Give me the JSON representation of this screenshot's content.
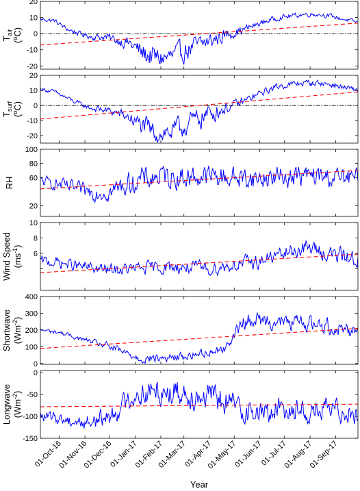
{
  "x_axis": {
    "label": "Year",
    "tick_labels": [
      "01-Oct-16",
      "01-Nov-16",
      "01-Dec-16",
      "01-Jan-17",
      "01-Feb-17",
      "01-Mar-17",
      "01-Apr-17",
      "01-May-17",
      "01-Jun-17",
      "01-Jul-17",
      "01-Aug-17",
      "01-Sep-17"
    ],
    "range": [
      "2016-09-08",
      "2017-09-28"
    ]
  },
  "colors": {
    "series": "#0000ff",
    "trend": "#ff0000",
    "zero_line": "#000000"
  },
  "chart_data": [
    {
      "type": "line",
      "ylabel_main": "T",
      "ylabel_sub": "air",
      "ylabel_unit_pre": "(",
      "ylabel_unit_sup": "o",
      "ylabel_unit_post": "C)",
      "ylim": [
        -22,
        20
      ],
      "yticks": [
        -20,
        -10,
        0,
        10,
        20
      ],
      "zero_line": true,
      "trend": {
        "start": -7.0,
        "end": 6.5
      },
      "anchors": [
        [
          "2016-09-08",
          9
        ],
        [
          "2016-09-25",
          8
        ],
        [
          "2016-10-10",
          3
        ],
        [
          "2016-10-25",
          0
        ],
        [
          "2016-11-10",
          -2
        ],
        [
          "2016-11-25",
          -2
        ],
        [
          "2016-12-10",
          -4
        ],
        [
          "2016-12-25",
          -6
        ],
        [
          "2017-01-10",
          -12
        ],
        [
          "2017-01-25",
          -15
        ],
        [
          "2017-02-10",
          -15
        ],
        [
          "2017-02-25",
          -12
        ],
        [
          "2017-03-10",
          -9
        ],
        [
          "2017-03-25",
          -6
        ],
        [
          "2017-04-10",
          -3
        ],
        [
          "2017-04-25",
          0
        ],
        [
          "2017-05-10",
          2
        ],
        [
          "2017-05-25",
          5
        ],
        [
          "2017-06-10",
          8
        ],
        [
          "2017-06-25",
          10
        ],
        [
          "2017-07-10",
          11
        ],
        [
          "2017-07-25",
          12
        ],
        [
          "2017-08-10",
          12
        ],
        [
          "2017-08-25",
          11
        ],
        [
          "2017-09-10",
          9
        ],
        [
          "2017-09-28",
          7
        ]
      ],
      "amp": [
        [
          0,
          1
        ],
        [
          60,
          1.5
        ],
        [
          100,
          3
        ],
        [
          130,
          6
        ],
        [
          200,
          5
        ],
        [
          230,
          3
        ],
        [
          260,
          1.5
        ],
        [
          385,
          1
        ]
      ]
    },
    {
      "type": "line",
      "ylabel_main": "T",
      "ylabel_sub": "surf",
      "ylabel_unit_pre": "(",
      "ylabel_unit_sup": "o",
      "ylabel_unit_post": "C)",
      "ylim": [
        -25,
        20
      ],
      "yticks": [
        -20,
        -10,
        0,
        10,
        20
      ],
      "zero_line": true,
      "trend": {
        "start": -9.0,
        "end": 9.0
      },
      "anchors": [
        [
          "2016-09-08",
          11
        ],
        [
          "2016-09-25",
          9
        ],
        [
          "2016-10-10",
          5
        ],
        [
          "2016-10-25",
          1
        ],
        [
          "2016-11-10",
          -2
        ],
        [
          "2016-11-25",
          -3
        ],
        [
          "2016-12-10",
          -5
        ],
        [
          "2016-12-25",
          -8
        ],
        [
          "2017-01-10",
          -14
        ],
        [
          "2017-01-25",
          -18
        ],
        [
          "2017-02-10",
          -18
        ],
        [
          "2017-02-25",
          -15
        ],
        [
          "2017-03-10",
          -11
        ],
        [
          "2017-03-25",
          -7
        ],
        [
          "2017-04-10",
          -4
        ],
        [
          "2017-04-25",
          -1
        ],
        [
          "2017-05-10",
          2
        ],
        [
          "2017-05-25",
          6
        ],
        [
          "2017-06-10",
          10
        ],
        [
          "2017-06-25",
          13
        ],
        [
          "2017-07-10",
          14
        ],
        [
          "2017-07-25",
          15
        ],
        [
          "2017-08-10",
          15
        ],
        [
          "2017-08-25",
          14
        ],
        [
          "2017-09-10",
          12
        ],
        [
          "2017-09-28",
          10
        ]
      ],
      "amp": [
        [
          0,
          1
        ],
        [
          60,
          1.5
        ],
        [
          100,
          3
        ],
        [
          130,
          6
        ],
        [
          200,
          6
        ],
        [
          230,
          3
        ],
        [
          260,
          2
        ],
        [
          385,
          1.5
        ]
      ]
    },
    {
      "type": "line",
      "ylabel_main": "RH",
      "ylim": [
        5,
        100
      ],
      "yticks": [
        20,
        60,
        80,
        100
      ],
      "ytick_labels": [
        "20",
        "60",
        "80",
        "100"
      ],
      "zero_line": false,
      "trend": {
        "start": 44,
        "end": 70
      },
      "anchors": [
        [
          "2016-09-08",
          55
        ],
        [
          "2016-10-01",
          50
        ],
        [
          "2016-11-01",
          40
        ],
        [
          "2016-12-01",
          40
        ],
        [
          "2017-01-01",
          55
        ],
        [
          "2017-02-01",
          62
        ],
        [
          "2017-03-01",
          60
        ],
        [
          "2017-04-01",
          62
        ],
        [
          "2017-05-01",
          60
        ],
        [
          "2017-06-01",
          58
        ],
        [
          "2017-07-01",
          62
        ],
        [
          "2017-08-01",
          62
        ],
        [
          "2017-09-01",
          60
        ],
        [
          "2017-09-28",
          58
        ]
      ],
      "amp": [
        [
          0,
          6
        ],
        [
          60,
          10
        ],
        [
          120,
          14
        ],
        [
          385,
          12
        ]
      ]
    },
    {
      "type": "line",
      "ylabel_main": "Wind Speed",
      "ylabel_unit_pre": "(ms",
      "ylabel_unit_sup": "-1",
      "ylabel_unit_post": ")",
      "ylim": [
        1.2,
        10
      ],
      "yticks": [
        4,
        6,
        8,
        10
      ],
      "ytick_labels": [
        "",
        "6",
        "8",
        "10"
      ],
      "zero_line": false,
      "trend": {
        "start": 3.5,
        "end": 5.9
      },
      "anchors": [
        [
          "2016-09-08",
          5.0
        ],
        [
          "2016-10-01",
          4.8
        ],
        [
          "2016-11-01",
          4.2
        ],
        [
          "2016-12-01",
          3.8
        ],
        [
          "2017-01-01",
          4.0
        ],
        [
          "2017-02-01",
          4.2
        ],
        [
          "2017-03-01",
          4.2
        ],
        [
          "2017-04-01",
          4.0
        ],
        [
          "2017-05-01",
          4.5
        ],
        [
          "2017-06-01",
          5.0
        ],
        [
          "2017-07-01",
          6.0
        ],
        [
          "2017-08-01",
          6.8
        ],
        [
          "2017-08-20",
          6.0
        ],
        [
          "2017-09-28",
          5.3
        ]
      ],
      "amp": [
        [
          0,
          0.6
        ],
        [
          385,
          0.9
        ]
      ]
    },
    {
      "type": "line",
      "ylabel_main": "Shortwave",
      "ylabel_unit_pre": "(Wm",
      "ylabel_unit_sup": "-2",
      "ylabel_unit_post": ")",
      "ylim": [
        -5,
        400
      ],
      "yticks": [
        0,
        100,
        200,
        300,
        400
      ],
      "zero_line": false,
      "trend": {
        "start": 90,
        "end": 210
      },
      "anchors": [
        [
          "2016-09-08",
          200
        ],
        [
          "2016-10-01",
          185
        ],
        [
          "2016-11-01",
          140
        ],
        [
          "2016-12-01",
          100
        ],
        [
          "2016-12-20",
          60
        ],
        [
          "2017-01-10",
          30
        ],
        [
          "2017-02-01",
          30
        ],
        [
          "2017-03-01",
          40
        ],
        [
          "2017-04-01",
          70
        ],
        [
          "2017-04-20",
          90
        ],
        [
          "2017-05-01",
          170
        ],
        [
          "2017-05-15",
          260
        ],
        [
          "2017-06-01",
          260
        ],
        [
          "2017-07-01",
          245
        ],
        [
          "2017-08-01",
          240
        ],
        [
          "2017-09-01",
          215
        ],
        [
          "2017-09-28",
          200
        ]
      ],
      "amp": [
        [
          0,
          10
        ],
        [
          60,
          12
        ],
        [
          100,
          25
        ],
        [
          230,
          20
        ],
        [
          245,
          40
        ],
        [
          385,
          40
        ]
      ]
    },
    {
      "type": "line",
      "ylabel_main": "Longwave",
      "ylabel_unit_pre": "(Wm",
      "ylabel_unit_sup": "-2",
      "ylabel_unit_post": ")",
      "ylim": [
        -150,
        5
      ],
      "yticks": [
        -150,
        -100,
        -50,
        0
      ],
      "zero_line": false,
      "trend": {
        "start": -78,
        "end": -72
      },
      "anchors": [
        [
          "2016-09-08",
          -100
        ],
        [
          "2016-10-01",
          -105
        ],
        [
          "2016-11-01",
          -115
        ],
        [
          "2016-12-01",
          -100
        ],
        [
          "2017-01-01",
          -50
        ],
        [
          "2017-02-01",
          -40
        ],
        [
          "2017-03-01",
          -45
        ],
        [
          "2017-04-01",
          -55
        ],
        [
          "2017-05-01",
          -75
        ],
        [
          "2017-06-01",
          -95
        ],
        [
          "2017-07-01",
          -80
        ],
        [
          "2017-08-01",
          -90
        ],
        [
          "2017-09-01",
          -85
        ],
        [
          "2017-09-28",
          -90
        ]
      ],
      "amp": [
        [
          0,
          10
        ],
        [
          100,
          20
        ],
        [
          150,
          28
        ],
        [
          385,
          22
        ]
      ]
    }
  ]
}
